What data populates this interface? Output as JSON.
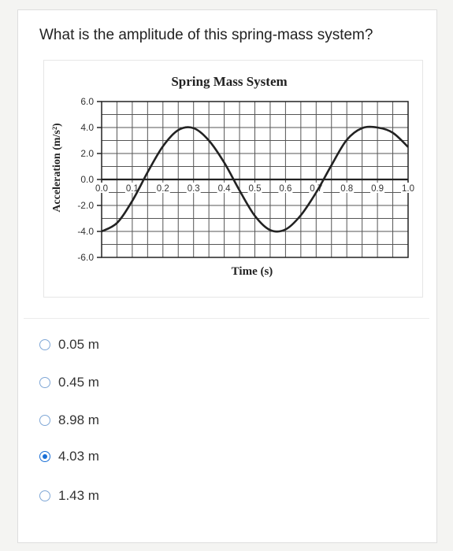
{
  "question": "What is the amplitude of this spring-mass system?",
  "chart_data": {
    "type": "line",
    "title": "Spring Mass System",
    "xlabel": "Time (s)",
    "ylabel": "Acceleration (m/s²)",
    "xlim": [
      0,
      1.0
    ],
    "ylim": [
      -6,
      6
    ],
    "grid": true,
    "x_ticks": [
      "0.0",
      "0.1",
      "0.2",
      "0.3",
      "0.4",
      "0.5",
      "0.6",
      "0.7",
      "0.8",
      "0.9",
      "1.0"
    ],
    "y_ticks": [
      "6.0",
      "4.0",
      "2.0",
      "0.0",
      "-2.0",
      "-4.0",
      "-6.0"
    ],
    "series": [
      {
        "values_described": "sinusoid",
        "x": [
          0.0,
          0.05,
          0.1,
          0.15,
          0.2,
          0.25,
          0.3,
          0.35,
          0.4,
          0.45,
          0.5,
          0.55,
          0.6,
          0.65,
          0.7,
          0.75,
          0.8,
          0.85,
          0.9,
          0.95,
          1.0
        ],
        "y": [
          -4.0,
          -3.35,
          -1.65,
          0.55,
          2.55,
          3.8,
          3.95,
          3.0,
          1.3,
          -0.85,
          -2.8,
          -3.9,
          -3.85,
          -2.75,
          -1.0,
          1.1,
          3.05,
          3.95,
          4.0,
          3.6,
          2.5
        ]
      }
    ]
  },
  "options": [
    {
      "label": "0.05 m",
      "checked": false
    },
    {
      "label": "0.45 m",
      "checked": false
    },
    {
      "label": "8.98 m",
      "checked": false
    },
    {
      "label": "4.03 m",
      "checked": true
    },
    {
      "label": "1.43 m",
      "checked": false
    }
  ],
  "colors": {
    "accent": "#1a6fd6",
    "radio_border": "#7fa7d6",
    "curve": "#222222"
  }
}
